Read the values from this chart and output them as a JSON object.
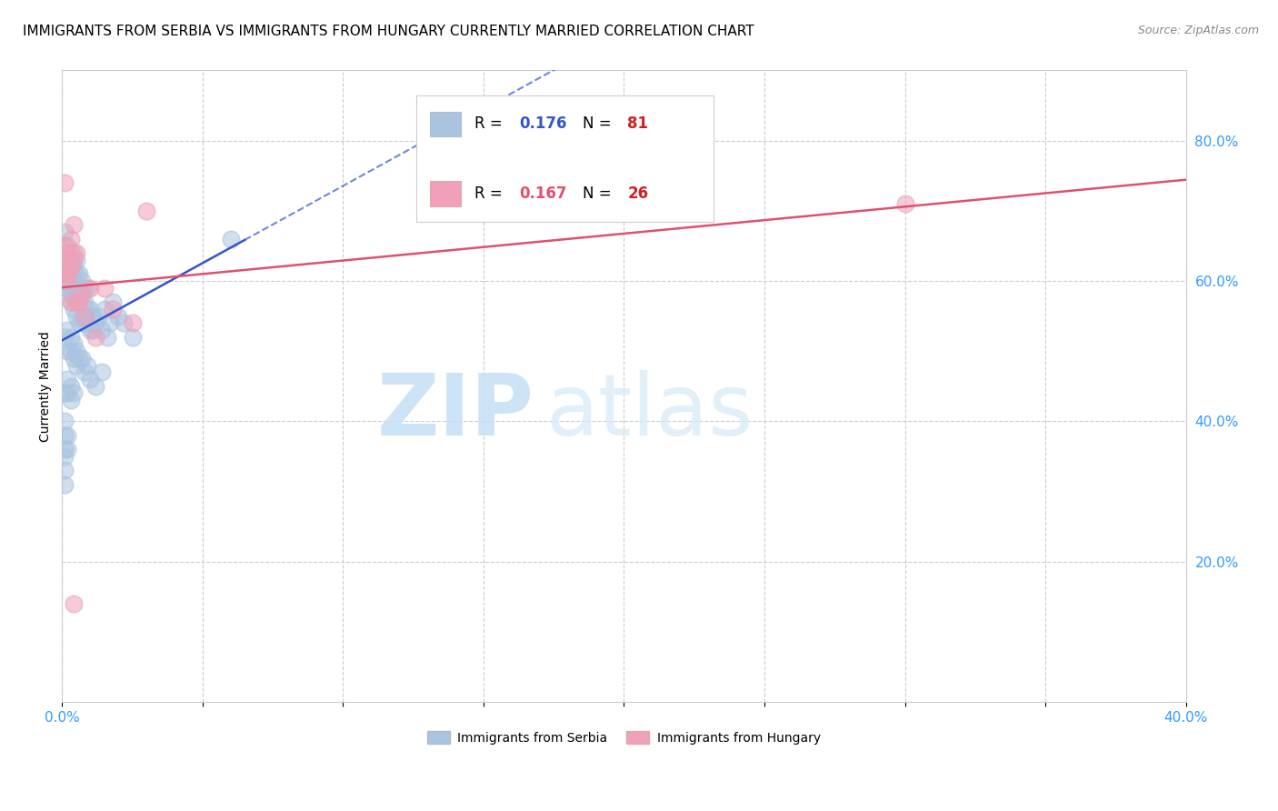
{
  "title": "IMMIGRANTS FROM SERBIA VS IMMIGRANTS FROM HUNGARY CURRENTLY MARRIED CORRELATION CHART",
  "source": "Source: ZipAtlas.com",
  "ylabel": "Currently Married",
  "xlim": [
    0.0,
    0.4
  ],
  "ylim": [
    0.0,
    0.9
  ],
  "yticks_right": [
    0.2,
    0.4,
    0.6,
    0.8
  ],
  "grid_color": "#cccccc",
  "serbia_color": "#aac4e0",
  "hungary_color": "#f0a0b8",
  "serbia_line_color": "#3355cc",
  "hungary_line_color": "#e05070",
  "serbia_R": 0.176,
  "serbia_N": 81,
  "hungary_R": 0.167,
  "hungary_N": 26,
  "serbia_x": [
    0.001,
    0.001,
    0.001,
    0.002,
    0.002,
    0.002,
    0.002,
    0.003,
    0.003,
    0.003,
    0.003,
    0.003,
    0.003,
    0.004,
    0.004,
    0.004,
    0.004,
    0.004,
    0.005,
    0.005,
    0.005,
    0.005,
    0.005,
    0.006,
    0.006,
    0.006,
    0.006,
    0.007,
    0.007,
    0.007,
    0.008,
    0.008,
    0.008,
    0.009,
    0.009,
    0.009,
    0.01,
    0.01,
    0.011,
    0.011,
    0.012,
    0.013,
    0.014,
    0.015,
    0.016,
    0.017,
    0.018,
    0.02,
    0.022,
    0.025,
    0.001,
    0.002,
    0.002,
    0.003,
    0.003,
    0.004,
    0.004,
    0.005,
    0.005,
    0.006,
    0.007,
    0.008,
    0.009,
    0.01,
    0.012,
    0.014,
    0.001,
    0.002,
    0.002,
    0.003,
    0.003,
    0.004,
    0.001,
    0.001,
    0.001,
    0.002,
    0.002,
    0.001,
    0.001,
    0.001,
    0.06
  ],
  "serbia_y": [
    0.6,
    0.63,
    0.67,
    0.59,
    0.61,
    0.63,
    0.65,
    0.57,
    0.59,
    0.61,
    0.63,
    0.58,
    0.6,
    0.56,
    0.58,
    0.6,
    0.62,
    0.64,
    0.55,
    0.57,
    0.59,
    0.61,
    0.63,
    0.54,
    0.57,
    0.59,
    0.61,
    0.55,
    0.58,
    0.6,
    0.54,
    0.57,
    0.59,
    0.54,
    0.56,
    0.59,
    0.53,
    0.56,
    0.53,
    0.55,
    0.54,
    0.55,
    0.53,
    0.56,
    0.52,
    0.54,
    0.57,
    0.55,
    0.54,
    0.52,
    0.52,
    0.5,
    0.53,
    0.5,
    0.52,
    0.49,
    0.51,
    0.48,
    0.5,
    0.49,
    0.49,
    0.47,
    0.48,
    0.46,
    0.45,
    0.47,
    0.44,
    0.44,
    0.46,
    0.43,
    0.45,
    0.44,
    0.38,
    0.4,
    0.36,
    0.36,
    0.38,
    0.33,
    0.35,
    0.31,
    0.66
  ],
  "hungary_x": [
    0.001,
    0.001,
    0.002,
    0.002,
    0.003,
    0.003,
    0.004,
    0.004,
    0.005,
    0.005,
    0.006,
    0.007,
    0.008,
    0.01,
    0.012,
    0.015,
    0.018,
    0.025,
    0.03,
    0.3,
    0.001,
    0.002,
    0.003,
    0.002,
    0.003,
    0.004
  ],
  "hungary_y": [
    0.74,
    0.63,
    0.61,
    0.64,
    0.62,
    0.66,
    0.63,
    0.68,
    0.64,
    0.57,
    0.57,
    0.58,
    0.55,
    0.59,
    0.52,
    0.59,
    0.56,
    0.54,
    0.7,
    0.71,
    0.65,
    0.6,
    0.57,
    0.61,
    0.64,
    0.14
  ],
  "watermark_zip": "ZIP",
  "watermark_atlas": "atlas",
  "axis_color": "#3399ff",
  "title_fontsize": 11,
  "label_fontsize": 10,
  "legend_serbia_label": "Immigrants from Serbia",
  "legend_hungary_label": "Immigrants from Hungary"
}
